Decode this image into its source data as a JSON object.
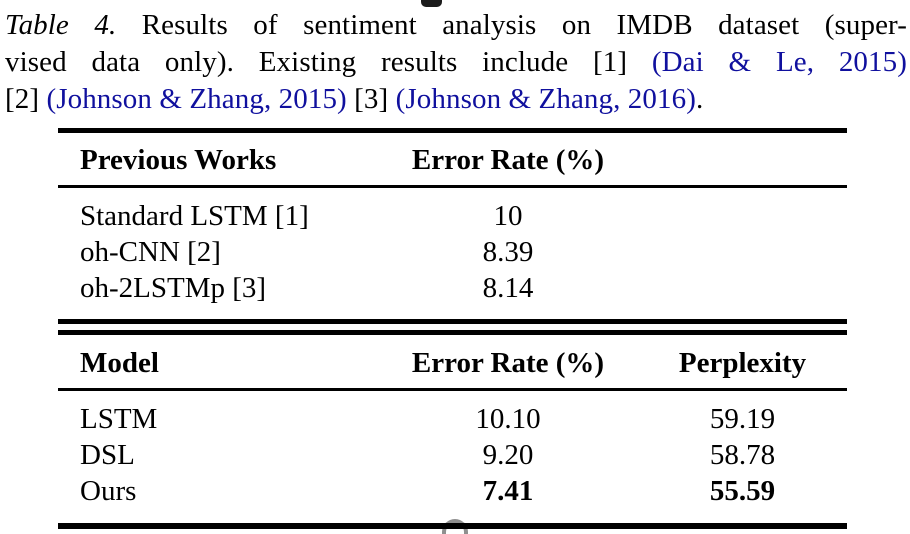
{
  "colors": {
    "citation_blue": "#10109e",
    "text_black": "#000000",
    "rule_black": "#000000",
    "cropped_arc_gray": "#8f8f8f"
  },
  "caption": {
    "label_italic": "Table 4.",
    "line1_text": " Results of sentiment analysis on IMDB dataset (super-",
    "line2_text": "vised data only). Existing results include [1] ",
    "citation_1": "(Dai & Le, 2015)",
    "line3_ref_2": "[2] ",
    "citation_2": "(Johnson & Zhang, 2015)",
    "line3_ref_3": " [3] ",
    "citation_3": "(Johnson & Zhang, 2016)",
    "line3_end": "."
  },
  "previous_works_table": {
    "col_headers": [
      "Previous Works",
      "Error Rate (%)"
    ],
    "rows": [
      {
        "name": "Standard LSTM [1]",
        "error_rate": "10"
      },
      {
        "name": "oh-CNN [2]",
        "error_rate": "8.39"
      },
      {
        "name": "oh-2LSTMp [3]",
        "error_rate": "8.14"
      }
    ]
  },
  "results_table": {
    "col_headers": [
      "Model",
      "Error Rate (%)",
      "Perplexity"
    ],
    "rows": [
      {
        "name": "LSTM",
        "error_rate": "10.10",
        "perplexity": "59.19"
      },
      {
        "name": "DSL",
        "error_rate": "9.20",
        "perplexity": "58.78"
      },
      {
        "name": "Ours",
        "error_rate": "7.41",
        "perplexity": "55.59"
      }
    ]
  }
}
